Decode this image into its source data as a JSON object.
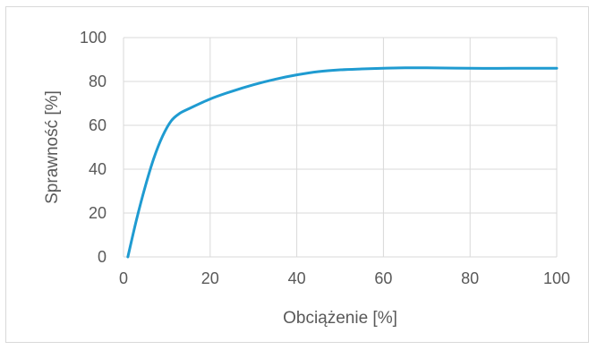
{
  "chart_data": {
    "type": "line",
    "title": "",
    "xlabel": "Obciążenie [%]",
    "ylabel": "Sprawność [%]",
    "xlim": [
      0,
      100
    ],
    "ylim": [
      0,
      100
    ],
    "x_ticks": [
      0,
      20,
      40,
      60,
      80,
      100
    ],
    "y_ticks": [
      0,
      20,
      40,
      60,
      80,
      100
    ],
    "grid": true,
    "legend": "none",
    "series": [
      {
        "color": "#1f9bd1",
        "x": [
          1,
          3,
          5,
          7,
          9,
          11,
          13,
          15,
          20,
          25,
          30,
          35,
          40,
          45,
          50,
          55,
          60,
          65,
          70,
          80,
          90,
          100
        ],
        "y": [
          0,
          17,
          32,
          45,
          55,
          62,
          65.5,
          67.5,
          72,
          75.5,
          78.5,
          81,
          83,
          84.5,
          85.3,
          85.7,
          86,
          86.2,
          86.2,
          86,
          86,
          86
        ]
      }
    ]
  }
}
